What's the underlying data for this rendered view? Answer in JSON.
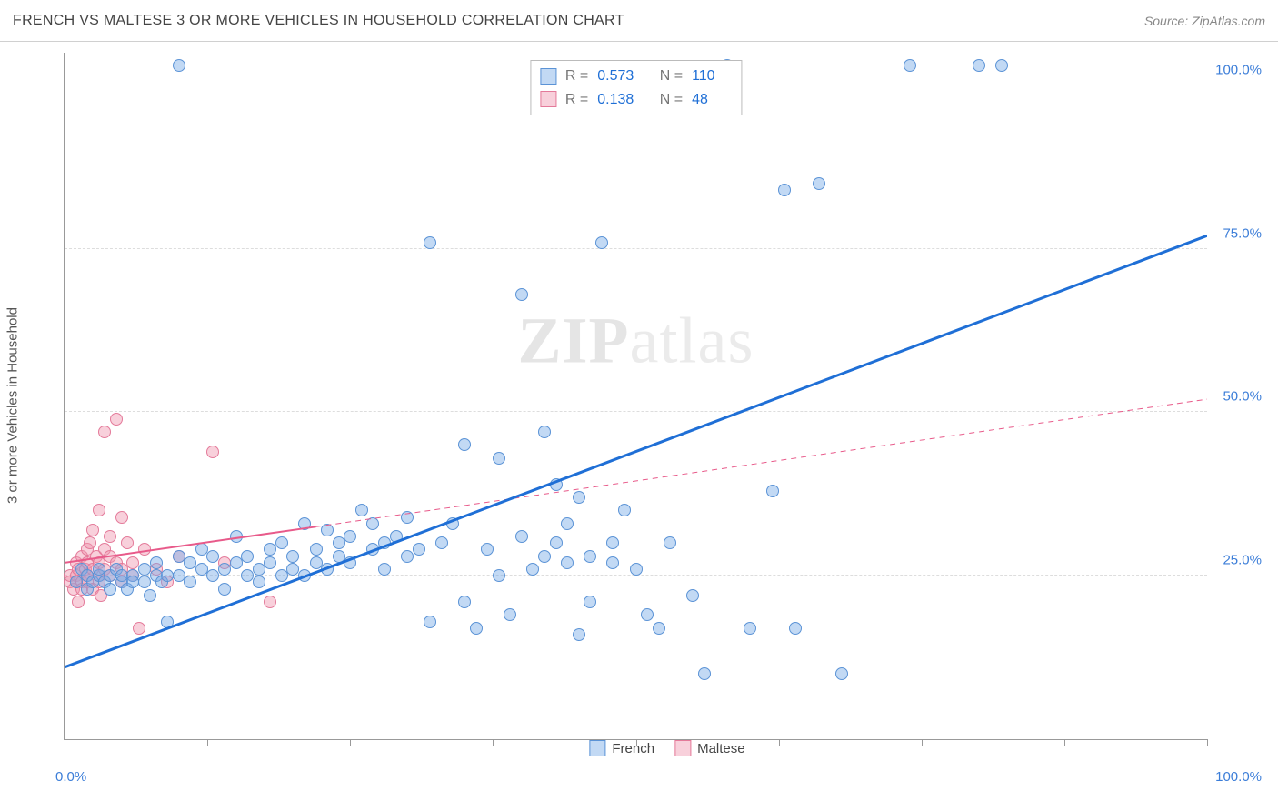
{
  "header": {
    "title": "FRENCH VS MALTESE 3 OR MORE VEHICLES IN HOUSEHOLD CORRELATION CHART",
    "source": "Source: ZipAtlas.com"
  },
  "watermark": {
    "zip": "ZIP",
    "atlas": "atlas"
  },
  "chart": {
    "type": "scatter",
    "ylabel": "3 or more Vehicles in Household",
    "xlim": [
      0,
      100
    ],
    "ylim": [
      0,
      105
    ],
    "ytick_values": [
      25,
      50,
      75,
      100
    ],
    "ytick_labels": [
      "25.0%",
      "50.0%",
      "75.0%",
      "100.0%"
    ],
    "xtick_values": [
      0,
      12.5,
      25,
      37.5,
      50,
      62.5,
      75,
      87.5,
      100
    ],
    "x_start_label": "0.0%",
    "x_end_label": "100.0%",
    "axis_label_color": "#3b7dd8",
    "background_color": "#ffffff",
    "grid_color": "#dddddd",
    "axis_color": "#999999"
  },
  "series": {
    "french": {
      "label": "French",
      "fill": "rgba(120,170,230,0.45)",
      "stroke": "#5b93d6",
      "trend_color": "#1f6fd6",
      "trend_width": 3,
      "marker_radius": 7,
      "R": "0.573",
      "N": "110",
      "trend": {
        "x1": 0,
        "y1": 11,
        "x2": 100,
        "y2": 77
      },
      "points": [
        [
          1,
          24
        ],
        [
          1.5,
          26
        ],
        [
          2,
          25
        ],
        [
          2,
          23
        ],
        [
          2.5,
          24
        ],
        [
          3,
          25
        ],
        [
          3,
          26
        ],
        [
          3.5,
          24
        ],
        [
          4,
          25
        ],
        [
          4,
          23
        ],
        [
          4.5,
          26
        ],
        [
          5,
          24
        ],
        [
          5,
          25
        ],
        [
          5.5,
          23
        ],
        [
          6,
          25
        ],
        [
          6,
          24
        ],
        [
          7,
          26
        ],
        [
          7,
          24
        ],
        [
          7.5,
          22
        ],
        [
          8,
          25
        ],
        [
          8,
          27
        ],
        [
          8.5,
          24
        ],
        [
          9,
          25
        ],
        [
          9,
          18
        ],
        [
          10,
          25
        ],
        [
          10,
          28
        ],
        [
          10,
          103
        ],
        [
          11,
          24
        ],
        [
          11,
          27
        ],
        [
          12,
          26
        ],
        [
          12,
          29
        ],
        [
          13,
          28
        ],
        [
          13,
          25
        ],
        [
          14,
          23
        ],
        [
          14,
          26
        ],
        [
          15,
          27
        ],
        [
          15,
          31
        ],
        [
          16,
          28
        ],
        [
          16,
          25
        ],
        [
          17,
          24
        ],
        [
          17,
          26
        ],
        [
          18,
          27
        ],
        [
          18,
          29
        ],
        [
          19,
          25
        ],
        [
          19,
          30
        ],
        [
          20,
          28
        ],
        [
          20,
          26
        ],
        [
          21,
          25
        ],
        [
          21,
          33
        ],
        [
          22,
          29
        ],
        [
          22,
          27
        ],
        [
          23,
          32
        ],
        [
          23,
          26
        ],
        [
          24,
          28
        ],
        [
          24,
          30
        ],
        [
          25,
          31
        ],
        [
          25,
          27
        ],
        [
          26,
          35
        ],
        [
          27,
          29
        ],
        [
          27,
          33
        ],
        [
          28,
          30
        ],
        [
          28,
          26
        ],
        [
          29,
          31
        ],
        [
          30,
          34
        ],
        [
          30,
          28
        ],
        [
          31,
          29
        ],
        [
          32,
          76
        ],
        [
          32,
          18
        ],
        [
          33,
          30
        ],
        [
          34,
          33
        ],
        [
          35,
          21
        ],
        [
          35,
          45
        ],
        [
          36,
          17
        ],
        [
          37,
          29
        ],
        [
          38,
          25
        ],
        [
          38,
          43
        ],
        [
          39,
          19
        ],
        [
          40,
          68
        ],
        [
          40,
          31
        ],
        [
          41,
          26
        ],
        [
          42,
          28
        ],
        [
          42,
          47
        ],
        [
          43,
          39
        ],
        [
          43,
          30
        ],
        [
          44,
          27
        ],
        [
          44,
          33
        ],
        [
          45,
          37
        ],
        [
          45,
          16
        ],
        [
          46,
          28
        ],
        [
          46,
          21
        ],
        [
          47,
          76
        ],
        [
          48,
          30
        ],
        [
          48,
          27
        ],
        [
          49,
          35
        ],
        [
          50,
          26
        ],
        [
          51,
          19
        ],
        [
          52,
          17
        ],
        [
          53,
          30
        ],
        [
          55,
          22
        ],
        [
          56,
          10
        ],
        [
          58,
          103
        ],
        [
          60,
          17
        ],
        [
          62,
          38
        ],
        [
          63,
          84
        ],
        [
          64,
          17
        ],
        [
          66,
          85
        ],
        [
          68,
          10
        ],
        [
          74,
          103
        ],
        [
          80,
          103
        ],
        [
          82,
          103
        ]
      ]
    },
    "maltese": {
      "label": "Maltese",
      "fill": "rgba(240,150,175,0.45)",
      "stroke": "#e47a9a",
      "trend_color": "#e85a8a",
      "trend_width": 2,
      "trend_dash": "6,5",
      "marker_radius": 7,
      "R": "0.138",
      "N": "48",
      "trend": {
        "x1": 0,
        "y1": 27,
        "x2": 100,
        "y2": 52,
        "solid_until": 22
      },
      "points": [
        [
          0.5,
          24
        ],
        [
          0.5,
          25
        ],
        [
          0.8,
          23
        ],
        [
          1,
          25
        ],
        [
          1,
          27
        ],
        [
          1,
          24
        ],
        [
          1.2,
          26
        ],
        [
          1.2,
          21
        ],
        [
          1.5,
          24
        ],
        [
          1.5,
          28
        ],
        [
          1.5,
          23
        ],
        [
          1.8,
          26
        ],
        [
          2,
          24
        ],
        [
          2,
          25
        ],
        [
          2,
          27
        ],
        [
          2,
          29
        ],
        [
          2.2,
          30
        ],
        [
          2.5,
          23
        ],
        [
          2.5,
          26
        ],
        [
          2.5,
          32
        ],
        [
          2.8,
          28
        ],
        [
          3,
          27
        ],
        [
          3,
          25
        ],
        [
          3,
          24
        ],
        [
          3,
          35
        ],
        [
          3.2,
          22
        ],
        [
          3.5,
          29
        ],
        [
          3.5,
          26
        ],
        [
          3.5,
          47
        ],
        [
          4,
          25
        ],
        [
          4,
          28
        ],
        [
          4,
          31
        ],
        [
          4.5,
          27
        ],
        [
          4.5,
          49
        ],
        [
          5,
          26
        ],
        [
          5,
          24
        ],
        [
          5,
          34
        ],
        [
          5.5,
          30
        ],
        [
          6,
          27
        ],
        [
          6,
          25
        ],
        [
          6.5,
          17
        ],
        [
          7,
          29
        ],
        [
          8,
          26
        ],
        [
          9,
          24
        ],
        [
          10,
          28
        ],
        [
          13,
          44
        ],
        [
          14,
          27
        ],
        [
          18,
          21
        ]
      ]
    }
  },
  "legend_top": {
    "r_label": "R =",
    "n_label": "N =",
    "label_color": "#777777",
    "value_color": "#1f6fd6"
  }
}
